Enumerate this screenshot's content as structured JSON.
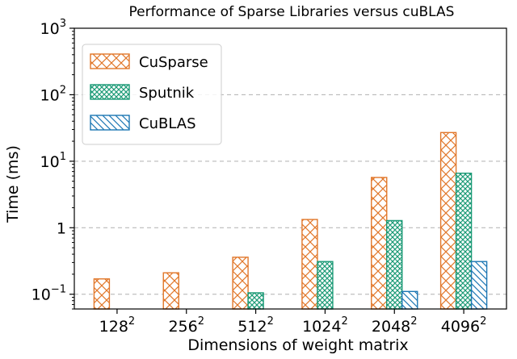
{
  "chart_data": {
    "type": "bar",
    "title": "Performance of Sparse Libraries versus cuBLAS",
    "xlabel": "Dimensions of weight matrix",
    "ylabel": "Time (ms)",
    "categories": [
      "128",
      "256",
      "512",
      "1024",
      "2048",
      "4096"
    ],
    "category_exponent": "2",
    "y_scale": "log",
    "ylim": [
      0.06,
      1000
    ],
    "y_ticks": [
      {
        "value": 0.1,
        "base": "10",
        "exp": "−1"
      },
      {
        "value": 1,
        "base": "1",
        "exp": ""
      },
      {
        "value": 10,
        "base": "10",
        "exp": "1"
      },
      {
        "value": 100,
        "base": "10",
        "exp": "2"
      },
      {
        "value": 1000,
        "base": "10",
        "exp": "3"
      }
    ],
    "grid": "y-major-dashed",
    "legend_position": "top-left",
    "series": [
      {
        "name": "CuSparse",
        "color": "#e1772a",
        "pattern": "crosshatch",
        "values": [
          0.17,
          0.21,
          0.36,
          1.33,
          5.7,
          27
        ]
      },
      {
        "name": "Sputnik",
        "color": "#1b9a76",
        "pattern": "dense-crosshatch",
        "values": [
          0.045,
          0.058,
          0.105,
          0.31,
          1.28,
          6.6
        ]
      },
      {
        "name": "CuBLAS",
        "color": "#1d77b4",
        "pattern": "diagonal",
        "values": [
          0.045,
          0.041,
          0.045,
          0.053,
          0.11,
          0.31
        ]
      }
    ]
  }
}
